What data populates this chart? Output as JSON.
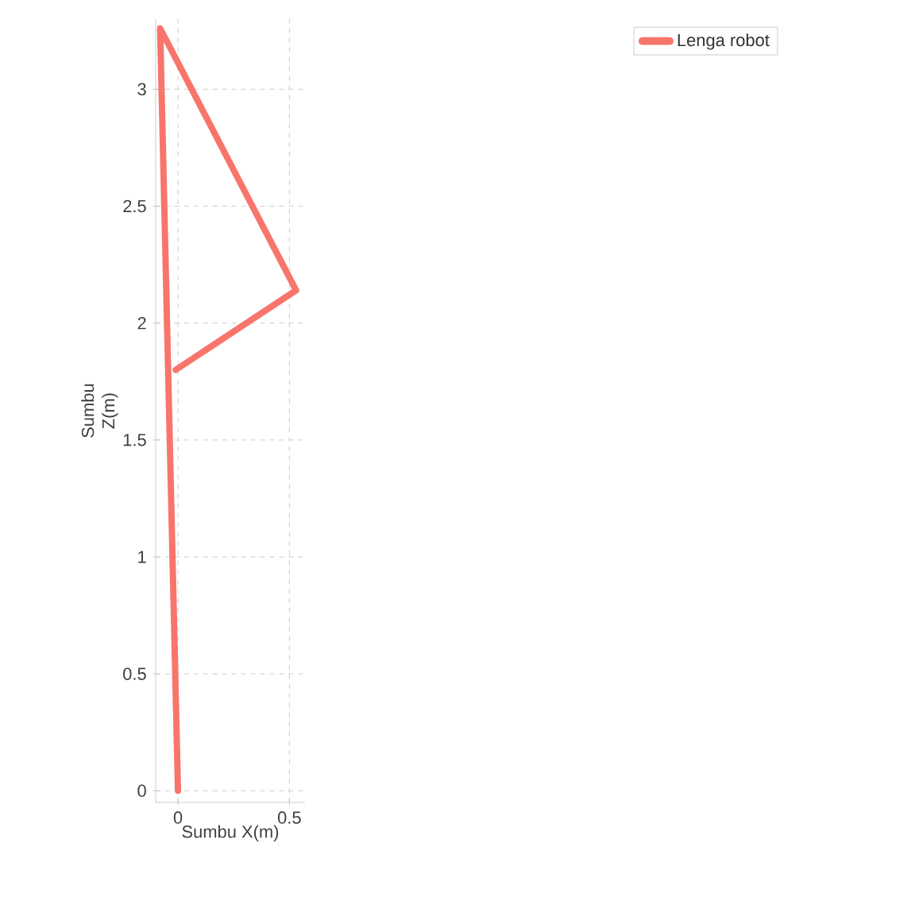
{
  "chart_data": {
    "type": "line",
    "xlabel": "Sumbu X(m)",
    "ylabel": "Sumbu Z(m)",
    "xlim": [
      -0.1,
      0.57
    ],
    "ylim": [
      -0.05,
      3.3
    ],
    "xticks": [
      0,
      0.5
    ],
    "yticks": [
      0,
      0.5,
      1,
      1.5,
      2,
      2.5,
      3
    ],
    "series": [
      {
        "name": "Lenga robot",
        "color": "#f8756c",
        "x": [
          0,
          -0.08,
          0.53,
          -0.01
        ],
        "values": [
          0,
          3.26,
          2.14,
          1.8
        ]
      }
    ],
    "grid": true,
    "legend": "top right"
  }
}
